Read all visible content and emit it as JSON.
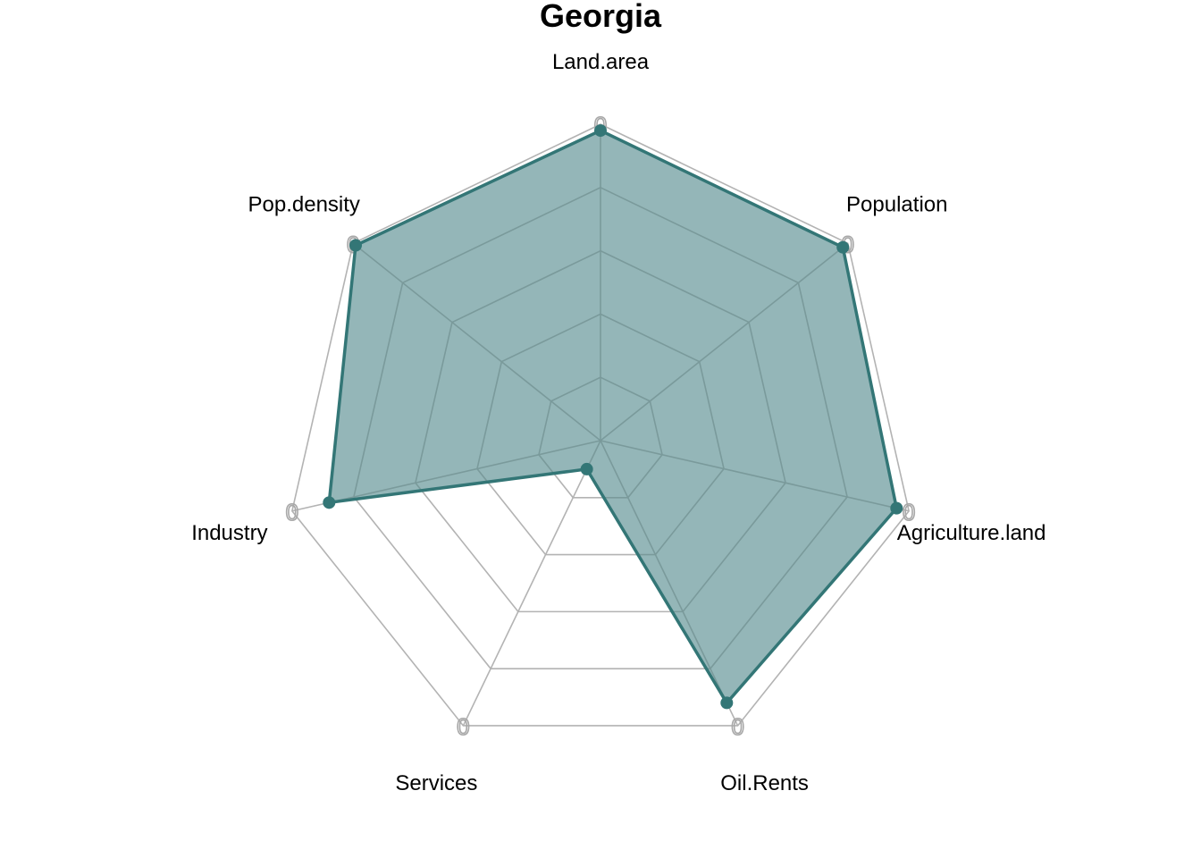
{
  "chart_data": {
    "type": "radar",
    "title": "Georgia",
    "axes": [
      "Land.area",
      "Population",
      "Agriculture.land",
      "Oil.Rents",
      "Services",
      "Industry",
      "Pop.density"
    ],
    "series": [
      {
        "values": [
          0.98,
          0.98,
          0.96,
          0.92,
          0.1,
          0.88,
          0.99
        ]
      }
    ],
    "range": [
      0,
      1
    ],
    "grid_levels": 5,
    "tick_labels": [
      "0",
      "0",
      "0",
      "0",
      "0",
      "0",
      "0"
    ],
    "colors": {
      "fill": "#94b6b8",
      "line": "#337676",
      "grid_outer": "#b3b3b3",
      "grid_inner": "#7a9a9b"
    }
  }
}
